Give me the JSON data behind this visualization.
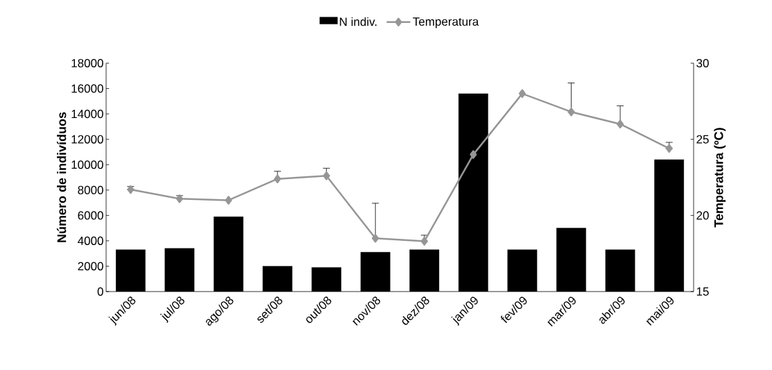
{
  "chart_data": {
    "type": "bar",
    "categories": [
      "jun/08",
      "jul/08",
      "ago/08",
      "set/08",
      "out/08",
      "nov/08",
      "dez/08",
      "jan/09",
      "fev/09",
      "mar/09",
      "abr/09",
      "mai/09"
    ],
    "series": [
      {
        "name": "N indiv.",
        "color": "#000000",
        "values": [
          3300,
          3400,
          5900,
          2000,
          1900,
          3100,
          3300,
          15600,
          3300,
          5000,
          3300,
          10400
        ]
      },
      {
        "name": "Temperatura",
        "type": "line",
        "axis": "y2",
        "color": "#969696",
        "marker": "diamond",
        "values": [
          21.7,
          21.1,
          21.0,
          22.4,
          22.6,
          18.5,
          18.3,
          24.0,
          28.0,
          26.8,
          26.0,
          24.4
        ],
        "errors": [
          [
            21.7,
            21.9
          ],
          [
            21.1,
            21.3
          ],
          null,
          [
            22.4,
            22.9
          ],
          [
            22.6,
            23.1
          ],
          [
            18.5,
            20.8
          ],
          [
            18.3,
            18.7
          ],
          null,
          null,
          [
            26.8,
            28.7
          ],
          [
            26.0,
            27.2
          ],
          [
            24.4,
            24.8
          ]
        ]
      }
    ],
    "ylabel": "Número de indivíduos",
    "y2label": "Temperatura (ºC)",
    "ylim": [
      0,
      18000
    ],
    "yticks": [
      0,
      2000,
      4000,
      6000,
      8000,
      10000,
      12000,
      14000,
      16000,
      18000
    ],
    "y2lim": [
      15,
      30
    ],
    "y2ticks": [
      15,
      20,
      25,
      30
    ],
    "grid": false,
    "legend": "top"
  }
}
